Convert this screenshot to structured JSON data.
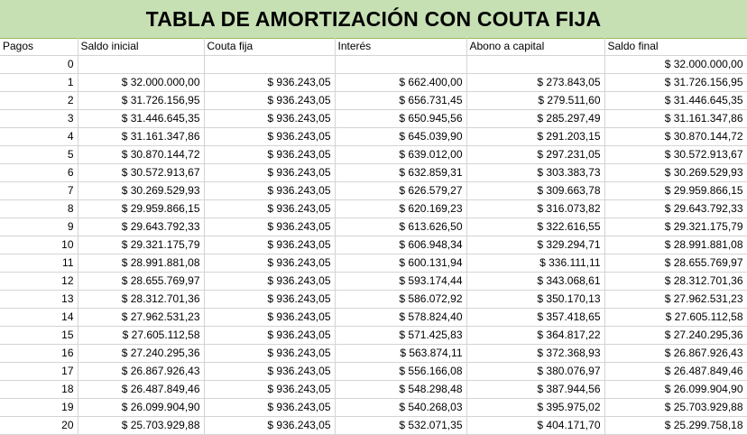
{
  "sheet": {
    "title": "TABLA DE AMORTIZACIÓN CON COUTA FIJA",
    "headers": [
      "Pagos",
      "Saldo inicial",
      "Couta fija",
      "Interés",
      "Abono a capital",
      "Saldo final"
    ],
    "rows": [
      [
        "0",
        "",
        "",
        "",
        "",
        "$ 32.000.000,00"
      ],
      [
        "1",
        "$ 32.000.000,00",
        "$ 936.243,05",
        "$ 662.400,00",
        "$ 273.843,05",
        "$ 31.726.156,95"
      ],
      [
        "2",
        "$ 31.726.156,95",
        "$ 936.243,05",
        "$ 656.731,45",
        "$ 279.511,60",
        "$ 31.446.645,35"
      ],
      [
        "3",
        "$ 31.446.645,35",
        "$ 936.243,05",
        "$ 650.945,56",
        "$ 285.297,49",
        "$ 31.161.347,86"
      ],
      [
        "4",
        "$ 31.161.347,86",
        "$ 936.243,05",
        "$ 645.039,90",
        "$ 291.203,15",
        "$ 30.870.144,72"
      ],
      [
        "5",
        "$ 30.870.144,72",
        "$ 936.243,05",
        "$ 639.012,00",
        "$ 297.231,05",
        "$ 30.572.913,67"
      ],
      [
        "6",
        "$ 30.572.913,67",
        "$ 936.243,05",
        "$ 632.859,31",
        "$ 303.383,73",
        "$ 30.269.529,93"
      ],
      [
        "7",
        "$ 30.269.529,93",
        "$ 936.243,05",
        "$ 626.579,27",
        "$ 309.663,78",
        "$ 29.959.866,15"
      ],
      [
        "8",
        "$ 29.959.866,15",
        "$ 936.243,05",
        "$ 620.169,23",
        "$ 316.073,82",
        "$ 29.643.792,33"
      ],
      [
        "9",
        "$ 29.643.792,33",
        "$ 936.243,05",
        "$ 613.626,50",
        "$ 322.616,55",
        "$ 29.321.175,79"
      ],
      [
        "10",
        "$ 29.321.175,79",
        "$ 936.243,05",
        "$ 606.948,34",
        "$ 329.294,71",
        "$ 28.991.881,08"
      ],
      [
        "11",
        "$ 28.991.881,08",
        "$ 936.243,05",
        "$ 600.131,94",
        "$ 336.111,11",
        "$ 28.655.769,97"
      ],
      [
        "12",
        "$ 28.655.769,97",
        "$ 936.243,05",
        "$ 593.174,44",
        "$ 343.068,61",
        "$ 28.312.701,36"
      ],
      [
        "13",
        "$ 28.312.701,36",
        "$ 936.243,05",
        "$ 586.072,92",
        "$ 350.170,13",
        "$ 27.962.531,23"
      ],
      [
        "14",
        "$ 27.962.531,23",
        "$ 936.243,05",
        "$ 578.824,40",
        "$ 357.418,65",
        "$ 27.605.112,58"
      ],
      [
        "15",
        "$ 27.605.112,58",
        "$ 936.243,05",
        "$ 571.425,83",
        "$ 364.817,22",
        "$ 27.240.295,36"
      ],
      [
        "16",
        "$ 27.240.295,36",
        "$ 936.243,05",
        "$ 563.874,11",
        "$ 372.368,93",
        "$ 26.867.926,43"
      ],
      [
        "17",
        "$ 26.867.926,43",
        "$ 936.243,05",
        "$ 556.166,08",
        "$ 380.076,97",
        "$ 26.487.849,46"
      ],
      [
        "18",
        "$ 26.487.849,46",
        "$ 936.243,05",
        "$ 548.298,48",
        "$ 387.944,56",
        "$ 26.099.904,90"
      ],
      [
        "19",
        "$ 26.099.904,90",
        "$ 936.243,05",
        "$ 540.268,03",
        "$ 395.975,02",
        "$ 25.703.929,88"
      ],
      [
        "20",
        "$ 25.703.929,88",
        "$ 936.243,05",
        "$ 532.071,35",
        "$ 404.171,70",
        "$ 25.299.758,18"
      ]
    ]
  }
}
